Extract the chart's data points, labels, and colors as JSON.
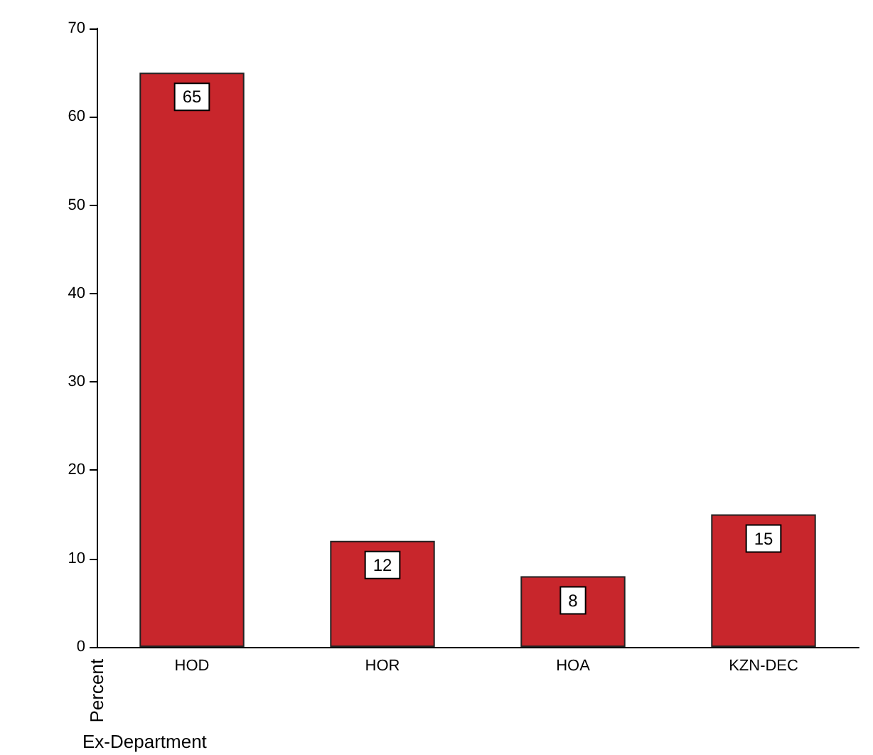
{
  "chart_data": {
    "type": "bar",
    "xlabel": "Ex-Department",
    "ylabel": "Percent",
    "categories": [
      "HOD",
      "HOR",
      "HOA",
      "KZN-DEC"
    ],
    "values": [
      65,
      12,
      8,
      15
    ],
    "color": "#c8262c",
    "ylim": [
      0,
      70
    ],
    "yticks": [
      0,
      10,
      20,
      30,
      40,
      50,
      60,
      70
    ],
    "grid": false,
    "data_labels": true
  }
}
